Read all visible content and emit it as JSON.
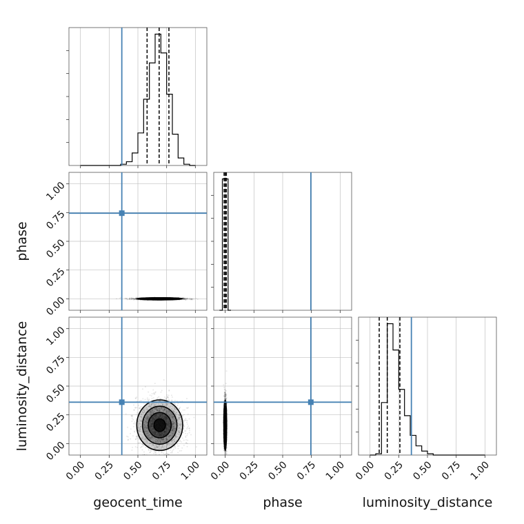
{
  "chart_data": {
    "type": "corner",
    "parameters": [
      "geocent_time",
      "phase",
      "luminosity_distance"
    ],
    "axis_range": [
      -0.1,
      1.1
    ],
    "ticks": [
      0.0,
      0.25,
      0.5,
      0.75,
      1.0
    ],
    "tick_labels": [
      "0.00",
      "0.25",
      "0.50",
      "0.75",
      "1.00"
    ],
    "grid": true,
    "colors": {
      "truth": "#4682b4",
      "hist": "#000000",
      "quantile": "#000000",
      "grid": "#c0c0c0"
    },
    "truths": {
      "geocent_time": 0.36,
      "phase": 0.745,
      "luminosity_distance": 0.36
    },
    "histograms": {
      "geocent_time": {
        "bin_edges": [
          0.0,
          0.05,
          0.1,
          0.15,
          0.2,
          0.25,
          0.3,
          0.35,
          0.4,
          0.45,
          0.5,
          0.55,
          0.6,
          0.65,
          0.7,
          0.75,
          0.8,
          0.85,
          0.9,
          0.95,
          1.0
        ],
        "counts": [
          0,
          0,
          0,
          0,
          0,
          0,
          0,
          1,
          3,
          10,
          26,
          53,
          82,
          105,
          90,
          57,
          25,
          6,
          1,
          0
        ],
        "quantiles": [
          0.58,
          0.685,
          0.77
        ]
      },
      "phase": {
        "bin_edges": [
          -0.05,
          -0.025,
          0.0,
          0.025,
          0.05
        ],
        "counts": [
          0,
          100,
          100,
          0
        ],
        "quantiles": [
          -0.01,
          0.0,
          0.01
        ]
      },
      "luminosity_distance": {
        "bin_edges": [
          0.0,
          0.05,
          0.1,
          0.15,
          0.2,
          0.25,
          0.3,
          0.35,
          0.4,
          0.45,
          0.5,
          0.55,
          0.6,
          0.65,
          0.7,
          0.75,
          0.8,
          0.85,
          0.9,
          0.95,
          1.0
        ],
        "counts": [
          0,
          1,
          40,
          100,
          80,
          50,
          30,
          15,
          7,
          3,
          1,
          0,
          0,
          0,
          0,
          0,
          0,
          0,
          0,
          0
        ],
        "quantiles": [
          0.08,
          0.15,
          0.26
        ]
      }
    },
    "joint": [
      {
        "x": "geocent_time",
        "y": "phase",
        "mean": [
          0.69,
          0.0
        ],
        "sd": [
          0.1,
          0.004
        ],
        "contour_levels": [
          0.5,
          1.0,
          1.5,
          2.0
        ]
      },
      {
        "x": "geocent_time",
        "y": "luminosity_distance",
        "mean": [
          0.69,
          0.16
        ],
        "sd": [
          0.1,
          0.11
        ],
        "contour_levels": [
          0.5,
          1.0,
          1.5,
          2.0
        ]
      },
      {
        "x": "phase",
        "y": "luminosity_distance",
        "mean": [
          0.0,
          0.16
        ],
        "sd": [
          0.006,
          0.11
        ],
        "contour_levels": [
          0.5,
          1.0,
          1.5,
          2.0
        ]
      }
    ]
  }
}
